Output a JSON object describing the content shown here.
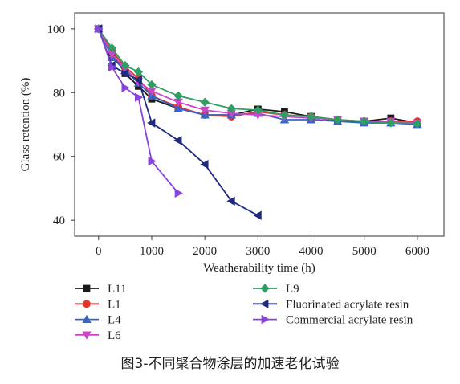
{
  "caption": "图3-不同聚合物涂层的加速老化试验",
  "chart_data": {
    "type": "line",
    "xlabel": "Weatherability time (h)",
    "ylabel": "Glass retention (%)",
    "xlim": [
      -450,
      6500
    ],
    "ylim": [
      35,
      105
    ],
    "xticks": [
      0,
      1000,
      2000,
      3000,
      4000,
      5000,
      6000
    ],
    "yticks": [
      40,
      60,
      80,
      100
    ],
    "grid": false,
    "legend_position": "below plot, two columns",
    "series": [
      {
        "name": "L11",
        "color": "#1a1a1a",
        "marker": "square",
        "x": [
          0,
          250,
          500,
          750,
          1000,
          1500,
          2000,
          2500,
          3000,
          3500,
          4000,
          4500,
          5000,
          5500,
          6000
        ],
        "y": [
          100,
          92.5,
          86,
          82,
          78,
          75,
          73,
          73,
          74.8,
          74,
          72.5,
          71,
          71,
          72,
          70.5
        ]
      },
      {
        "name": "L1",
        "color": "#e0362c",
        "marker": "circle",
        "x": [
          0,
          250,
          500,
          750,
          1000,
          1500,
          2000,
          2500,
          3000,
          3500,
          4000,
          4500,
          5000,
          5500,
          6000
        ],
        "y": [
          100,
          93,
          88,
          84.5,
          79,
          75.5,
          73,
          72.5,
          74,
          73,
          72.5,
          71.5,
          71,
          71,
          71
        ]
      },
      {
        "name": "L4",
        "color": "#3a64c4",
        "marker": "triangle-up",
        "x": [
          0,
          250,
          500,
          750,
          1000,
          1500,
          2000,
          2500,
          3000,
          3500,
          4000,
          4500,
          5000,
          5500,
          6000
        ],
        "y": [
          100,
          91,
          87,
          83,
          79,
          75,
          73,
          73,
          73.5,
          71.5,
          71.5,
          71,
          70.5,
          70.5,
          70
        ]
      },
      {
        "name": "L6",
        "color": "#cc44cc",
        "marker": "triangle-down",
        "x": [
          0,
          250,
          500,
          750,
          1000,
          1500,
          2000,
          2500,
          3000,
          3500,
          4000,
          4500,
          5000,
          5500,
          6000
        ],
        "y": [
          100,
          92,
          87.5,
          83.5,
          80.5,
          77,
          74.5,
          73.5,
          73,
          72.5,
          72,
          71.5,
          71,
          71,
          70.5
        ]
      },
      {
        "name": "L9",
        "color": "#2e9e62",
        "marker": "diamond",
        "x": [
          0,
          250,
          500,
          750,
          1000,
          1500,
          2000,
          2500,
          3000,
          3500,
          4000,
          4500,
          5000,
          5500,
          6000
        ],
        "y": [
          100,
          94,
          88.5,
          86.5,
          82.5,
          79,
          77,
          75,
          74.5,
          73,
          72.5,
          71.5,
          71,
          70.5,
          70.3
        ]
      },
      {
        "name": "Fluorinated acrylate resin",
        "color": "#1f2a80",
        "marker": "triangle-left",
        "x": [
          0,
          250,
          500,
          750,
          1000,
          1500,
          2000,
          2500,
          3000
        ],
        "y": [
          100,
          88.5,
          86,
          84,
          70.5,
          65,
          57.5,
          46,
          41.5
        ]
      },
      {
        "name": "Commercial acrylate resin",
        "color": "#8844dd",
        "marker": "triangle-right",
        "x": [
          0,
          250,
          500,
          750,
          1000,
          1500
        ],
        "y": [
          100,
          88,
          81.5,
          78.5,
          58.5,
          48.5
        ]
      }
    ]
  }
}
